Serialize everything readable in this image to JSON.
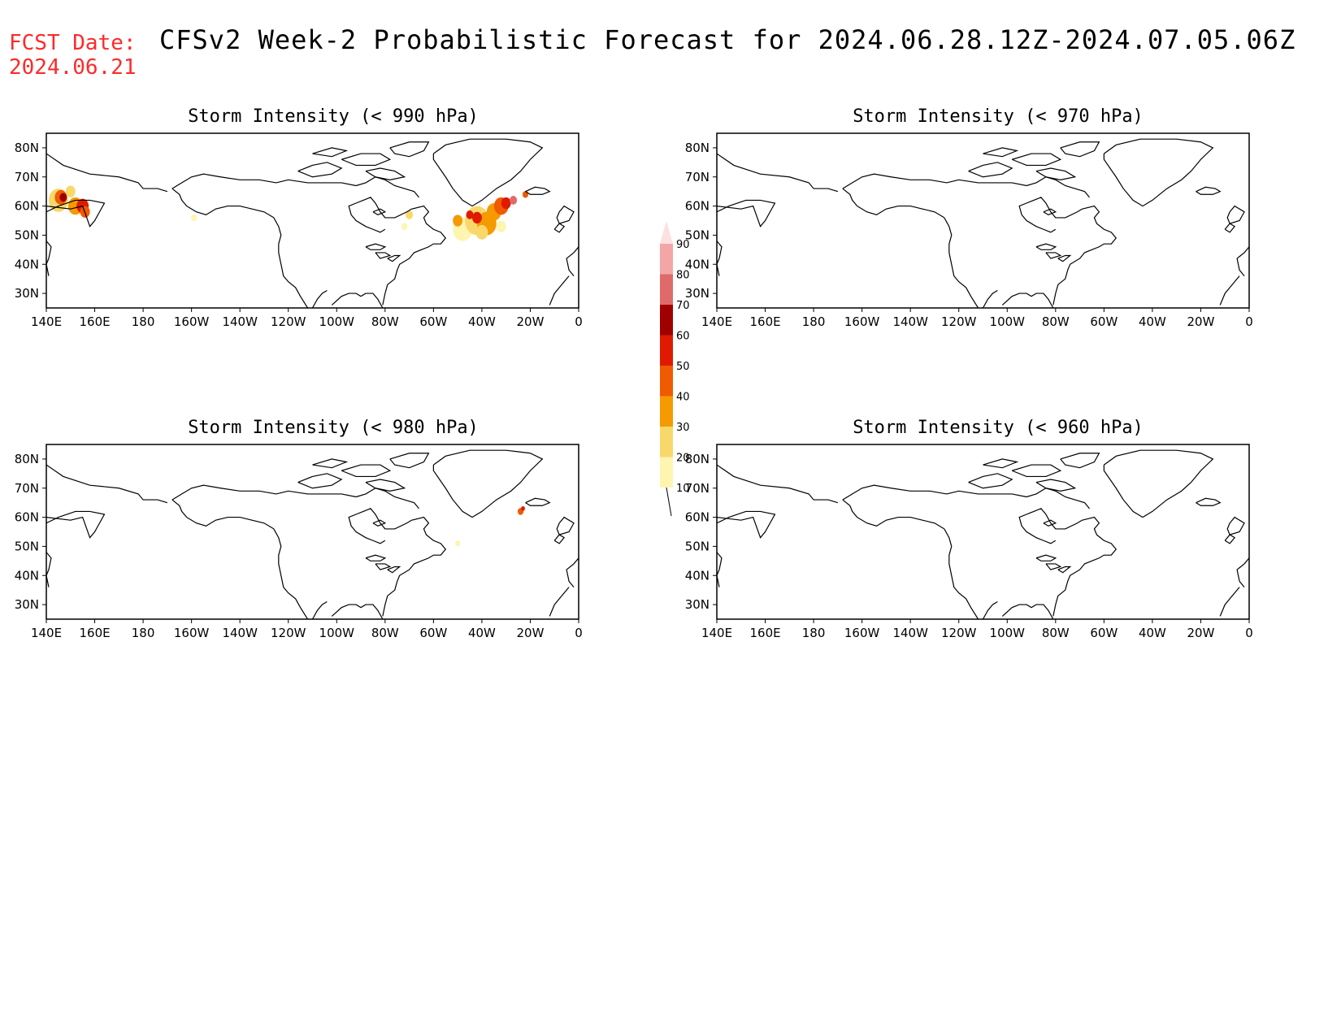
{
  "header": {
    "fcst_label": "FCST Date:",
    "fcst_date": "2024.06.21",
    "title": "CFSv2 Week-2 Probabilistic Forecast for 2024.06.28.12Z-2024.07.05.06Z"
  },
  "axes": {
    "x_ticks": [
      "140E",
      "160E",
      "180",
      "160W",
      "140W",
      "120W",
      "100W",
      "80W",
      "60W",
      "40W",
      "20W",
      "0"
    ],
    "y_ticks": [
      "80N",
      "70N",
      "60N",
      "50N",
      "40N",
      "30N"
    ]
  },
  "panels": [
    {
      "id": "p990",
      "title": "Storm Intensity (< 990 hPa)"
    },
    {
      "id": "p970",
      "title": "Storm Intensity (< 970 hPa)"
    },
    {
      "id": "p980",
      "title": "Storm Intensity (< 980 hPa)"
    },
    {
      "id": "p960",
      "title": "Storm Intensity (< 960 hPa)"
    }
  ],
  "colorbar": {
    "labels": [
      "90",
      "80",
      "70",
      "60",
      "50",
      "40",
      "30",
      "20",
      "10"
    ],
    "colors": [
      "#f4a6a6",
      "#e06a6a",
      "#a00000",
      "#e01a00",
      "#f05a00",
      "#f59a00",
      "#f8d86a",
      "#fff4b0"
    ]
  }
}
